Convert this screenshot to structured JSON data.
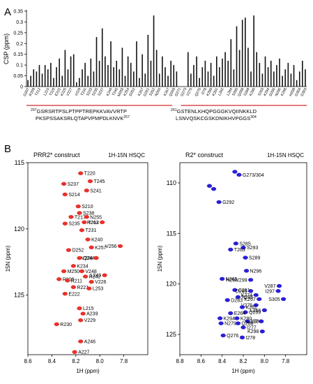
{
  "panel_labels": {
    "a": "A",
    "b": "B"
  },
  "sequences": {
    "left_line1_start": "207",
    "left_line1": "GSRSRTPSLPTPPTREPKKVAVVRTP",
    "left_line2": "PKSPSSAKSRLQTAPVPMPDLKNVK",
    "left_line2_end": "257",
    "right_line1_start": "261",
    "right_line1": "GSTENLKHQPGGGKVQIINKKLD",
    "right_line2": "LSNVQSKCGSKDNIKHVPGGS",
    "right_line2_end": "304"
  },
  "chart_data": [
    {
      "type": "bar",
      "title": "",
      "xlabel": "",
      "ylabel": "CSP (ppm)",
      "ylim": [
        0,
        0.35
      ],
      "yticks": [
        "0",
        "0.05",
        "0.1",
        "0.15",
        "0.2",
        "0.25",
        "0.3",
        "0.35"
      ],
      "tick_labels_shown": [
        "G207",
        "R209",
        "T212",
        "L215",
        "T220",
        "E222",
        "K225",
        "V227",
        "V229",
        "T231",
        "S233",
        "S235",
        "S237",
        "K240",
        "T245",
        "M250",
        "K254",
        "D252",
        "K257",
        "G261",
        "S262",
        "N265",
        "K267",
        "Q269",
        "G271",
        "G273",
        "V275",
        "Q276",
        "I278",
        "K280",
        "K281",
        "L282",
        "L284",
        "S285",
        "Q288",
        "S289",
        "K290",
        "S293",
        "K294",
        "D295",
        "N296",
        "K298",
        "H299",
        "G304",
        "G303"
      ],
      "categories": [
        "207",
        "208",
        "209",
        "210",
        "211",
        "212",
        "213",
        "214",
        "215",
        "216",
        "217",
        "218",
        "219",
        "220",
        "221",
        "222",
        "223",
        "224",
        "225",
        "226",
        "227",
        "228",
        "229",
        "230",
        "231",
        "232",
        "233",
        "234",
        "235",
        "236",
        "237",
        "238",
        "239",
        "240",
        "241",
        "242",
        "243",
        "244",
        "245",
        "246",
        "247",
        "248",
        "249",
        "250",
        "251",
        "252",
        "253",
        "254",
        "255",
        "256",
        "257",
        "258",
        "259",
        "260",
        "261",
        "262",
        "263",
        "264",
        "265",
        "266",
        "267",
        "268",
        "269",
        "270",
        "271",
        "272",
        "273",
        "274",
        "275",
        "276",
        "277",
        "278",
        "279",
        "280",
        "281",
        "282",
        "283",
        "284",
        "285",
        "286",
        "287",
        "288",
        "289",
        "290",
        "291",
        "292",
        "293",
        "294",
        "295",
        "296",
        "297",
        "298",
        "299",
        "300",
        "301",
        "302",
        "303",
        "304"
      ],
      "values": [
        0.03,
        0.05,
        0.08,
        0.07,
        0.1,
        0.06,
        0.1,
        0.08,
        0.11,
        0.04,
        0.09,
        0.13,
        0.05,
        0.17,
        0.08,
        0.14,
        0.15,
        0.02,
        0.04,
        0.08,
        0.11,
        0.05,
        0.13,
        0.07,
        0.23,
        0.12,
        0.27,
        0.14,
        0.1,
        0.21,
        0.09,
        0.12,
        0.08,
        0.18,
        0.05,
        0.14,
        0.11,
        0.07,
        0.21,
        0.04,
        0.15,
        0.06,
        0.24,
        0.12,
        0.33,
        0.17,
        0.06,
        0.14,
        0.09,
        0.05,
        0.12,
        0.1,
        0.07,
        null,
        null,
        null,
        0.16,
        0.06,
        0.1,
        0.14,
        0.04,
        0.09,
        0.12,
        0.07,
        0.11,
        0.05,
        0.14,
        0.09,
        0.13,
        0.16,
        0.12,
        0.22,
        0.08,
        0.28,
        0.17,
        0.31,
        0.32,
        0.18,
        0.07,
        0.33,
        0.16,
        0.11,
        0.06,
        0.14,
        0.09,
        0.12,
        0.07,
        0.1,
        0.13,
        0.05,
        0.08,
        0.11,
        0.06,
        0.1,
        0.03,
        0.07,
        0.12,
        0.08
      ],
      "domain_lines": [
        {
          "from": "207",
          "to": "257",
          "color": "#d42b2b"
        },
        {
          "from": "261",
          "to": "304",
          "color": "#d42b2b"
        }
      ]
    },
    {
      "type": "scatter",
      "title": "PRR2* construct",
      "subtitle": "1H-15N HSQC",
      "xlabel": "1H (ppm)",
      "ylabel": "15N (ppm)",
      "xlim": [
        8.6,
        7.6
      ],
      "ylim": [
        115,
        129.5
      ],
      "xticks": [
        "8.6",
        "8.4",
        "8.2",
        "8.0",
        "7.8"
      ],
      "yticks": [
        "115",
        "120",
        "125"
      ],
      "color": "#e8312a",
      "peaks": [
        {
          "label": "T220",
          "x": 8.16,
          "y": 115.8
        },
        {
          "label": "T245",
          "x": 8.08,
          "y": 116.4
        },
        {
          "label": "S237",
          "x": 8.3,
          "y": 116.6
        },
        {
          "label": "S241",
          "x": 8.11,
          "y": 117.1
        },
        {
          "label": "S214",
          "x": 8.29,
          "y": 117.4
        },
        {
          "label": "S210",
          "x": 8.18,
          "y": 118.3
        },
        {
          "label": "S238",
          "x": 8.17,
          "y": 118.8
        },
        {
          "label": "T217",
          "x": 8.24,
          "y": 119.1
        },
        {
          "label": "N255",
          "x": 8.11,
          "y": 119.1
        },
        {
          "label": "H263",
          "x": 7.98,
          "y": 119.5
        },
        {
          "label": "T212",
          "x": 8.13,
          "y": 119.5
        },
        {
          "label": "S235",
          "x": 8.29,
          "y": 119.6
        },
        {
          "label": "T231",
          "x": 8.15,
          "y": 120.1
        },
        {
          "label": "K240",
          "x": 8.1,
          "y": 120.8
        },
        {
          "label": "K257",
          "x": 8.07,
          "y": 121.4
        },
        {
          "label": "V256",
          "x": 7.83,
          "y": 121.3
        },
        {
          "label": "D252",
          "x": 8.26,
          "y": 121.6
        },
        {
          "label": "Q244",
          "x": 8.17,
          "y": 122.2
        },
        {
          "label": "V228",
          "x": 8.03,
          "y": 122.2
        },
        {
          "label": "K234",
          "x": 8.22,
          "y": 122.8
        },
        {
          "label": "M250",
          "x": 8.3,
          "y": 123.2
        },
        {
          "label": "V248",
          "x": 8.15,
          "y": 123.2
        },
        {
          "label": "L243",
          "x": 7.96,
          "y": 123.5
        },
        {
          "label": "R242",
          "x": 8.12,
          "y": 123.6
        },
        {
          "label": "R209",
          "x": 8.34,
          "y": 123.8
        },
        {
          "label": "R211",
          "x": 8.27,
          "y": 123.9
        },
        {
          "label": "V226",
          "x": 8.07,
          "y": 124.0
        },
        {
          "label": "R221",
          "x": 8.22,
          "y": 124.4
        },
        {
          "label": "L253",
          "x": 8.09,
          "y": 124.5
        },
        {
          "label": "E222",
          "x": 8.29,
          "y": 124.9
        },
        {
          "label": "L215",
          "x": 8.17,
          "y": 126.0
        },
        {
          "label": "A239",
          "x": 8.14,
          "y": 126.4
        },
        {
          "label": "V229",
          "x": 8.16,
          "y": 126.9
        },
        {
          "label": "R230",
          "x": 8.36,
          "y": 127.2
        },
        {
          "label": "A246",
          "x": 8.16,
          "y": 128.5
        },
        {
          "label": "A227",
          "x": 8.21,
          "y": 129.3
        }
      ]
    },
    {
      "type": "scatter",
      "title": "R2* construct",
      "subtitle": "1H-15N HSQC",
      "xlabel": "1H (ppm)",
      "ylabel": "15N (ppm)",
      "xlim": [
        8.8,
        7.6
      ],
      "ylim": [
        108,
        127
      ],
      "xticks": [
        "8.8",
        "8.6",
        "8.4",
        "8.2",
        "8.0",
        "7.8"
      ],
      "yticks": [
        "110",
        "115",
        "120",
        "125"
      ],
      "color": "#2a1fd6",
      "peaks": [
        {
          "label": "G273/304",
          "x": 8.24,
          "y": 109.2
        },
        {
          "label": "",
          "x": 8.28,
          "y": 108.9
        },
        {
          "label": "",
          "x": 8.52,
          "y": 110.3
        },
        {
          "label": "",
          "x": 8.48,
          "y": 110.6
        },
        {
          "label": "G292",
          "x": 8.43,
          "y": 111.9
        },
        {
          "label": "S285",
          "x": 8.27,
          "y": 116.0
        },
        {
          "label": "S293",
          "x": 8.2,
          "y": 116.4
        },
        {
          "label": "T263",
          "x": 8.32,
          "y": 116.6
        },
        {
          "label": "S289",
          "x": 8.18,
          "y": 117.4
        },
        {
          "label": "N296",
          "x": 8.17,
          "y": 118.7
        },
        {
          "label": "N265",
          "x": 8.4,
          "y": 119.5
        },
        {
          "label": "H268/299",
          "x": 8.13,
          "y": 119.6
        },
        {
          "label": "V287",
          "x": 7.86,
          "y": 120.2
        },
        {
          "label": "C291",
          "x": 8.28,
          "y": 120.6
        },
        {
          "label": "D295",
          "x": 8.13,
          "y": 120.7
        },
        {
          "label": "I297",
          "x": 7.87,
          "y": 120.7
        },
        {
          "label": "K274",
          "x": 8.08,
          "y": 121.1
        },
        {
          "label": "N286",
          "x": 8.25,
          "y": 121.3
        },
        {
          "label": "K267",
          "x": 8.05,
          "y": 121.5
        },
        {
          "label": "S305",
          "x": 7.82,
          "y": 121.5
        },
        {
          "label": "D283",
          "x": 8.35,
          "y": 121.6
        },
        {
          "label": "V275",
          "x": 8.08,
          "y": 122.1
        },
        {
          "label": "K281",
          "x": 8.21,
          "y": 122.3
        },
        {
          "label": "L266",
          "x": 8.0,
          "y": 122.6
        },
        {
          "label": "Q269",
          "x": 8.18,
          "y": 122.8
        },
        {
          "label": "E264",
          "x": 8.32,
          "y": 122.9
        },
        {
          "label": "K294",
          "x": 8.42,
          "y": 123.4
        },
        {
          "label": "K280",
          "x": 8.26,
          "y": 123.4
        },
        {
          "label": "L284",
          "x": 8.16,
          "y": 123.7
        },
        {
          "label": "L282",
          "x": 8.03,
          "y": 123.7
        },
        {
          "label": "N279",
          "x": 8.41,
          "y": 123.9
        },
        {
          "label": "Q288",
          "x": 8.25,
          "y": 123.9
        },
        {
          "label": "I277",
          "x": 8.2,
          "y": 124.3
        },
        {
          "label": "K298",
          "x": 8.02,
          "y": 124.7
        },
        {
          "label": "Q276",
          "x": 8.39,
          "y": 125.1
        },
        {
          "label": "I278",
          "x": 8.21,
          "y": 125.3
        }
      ]
    }
  ]
}
